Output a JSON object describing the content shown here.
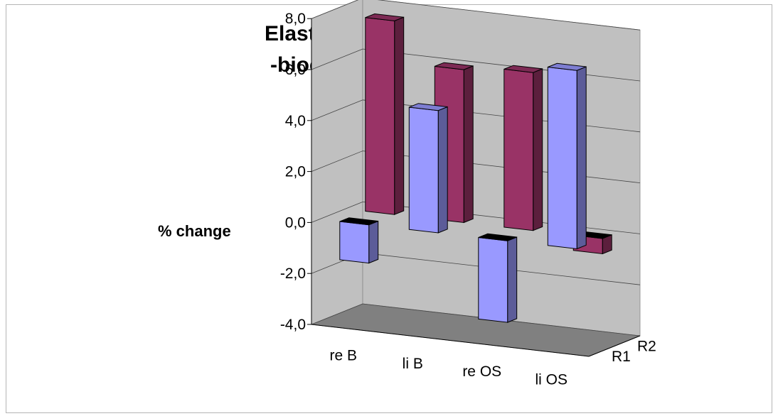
{
  "chart_data": {
    "type": "bar",
    "title_line1": "Elasticity (Cutometer)",
    "title_line2": "-bioelastic properties-",
    "ylabel": "% change",
    "xlabel": "",
    "categories": [
      "re B",
      "li B",
      "re OS",
      "li OS"
    ],
    "series": [
      {
        "name": "R1",
        "values": [
          -1.5,
          4.8,
          -3.2,
          7.0
        ],
        "color": "#9999ff"
      },
      {
        "name": "R2",
        "values": [
          7.6,
          6.0,
          6.2,
          -0.6
        ],
        "color": "#993366"
      }
    ],
    "ylim": [
      -4.0,
      8.0
    ],
    "yticks": [
      "8,0",
      "6,0",
      "4,0",
      "2,0",
      "0,0",
      "-2,0",
      "-4,0"
    ],
    "ytick_values": [
      8,
      6,
      4,
      2,
      0,
      -2,
      -4
    ],
    "depth_labels": [
      "R2",
      "R1"
    ],
    "wall_color": "#c0c0c0",
    "floor_color": "#808080",
    "grid": true,
    "projection": "3d"
  }
}
